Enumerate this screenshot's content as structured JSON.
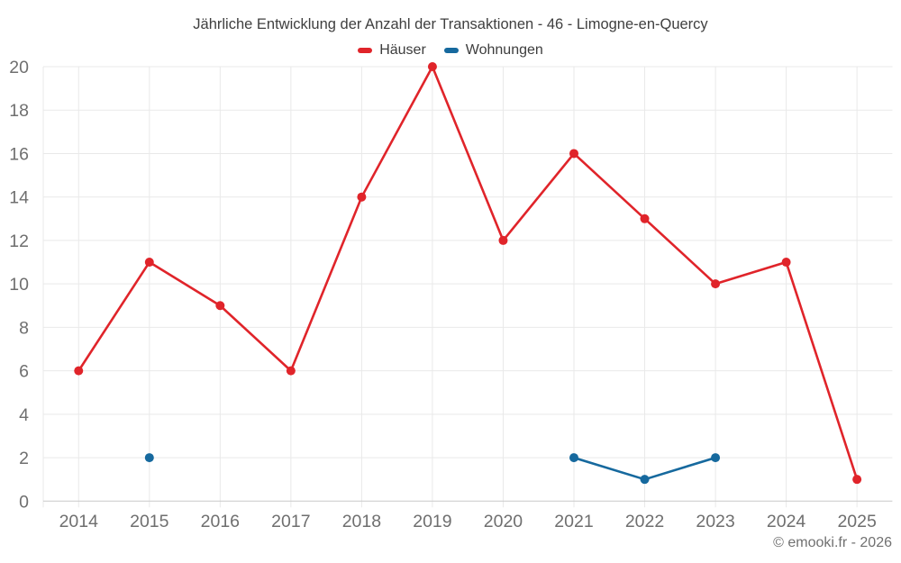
{
  "chart": {
    "title": "Jährliche Entwicklung der Anzahl der Transaktionen - 46 - Limogne-en-Quercy",
    "footer": "© emooki.fr - 2026"
  },
  "chart_data": {
    "type": "line",
    "title": "Jährliche Entwicklung der Anzahl der Transaktionen - 46 - Limogne-en-Quercy",
    "categories": [
      "2014",
      "2015",
      "2016",
      "2017",
      "2018",
      "2019",
      "2020",
      "2021",
      "2022",
      "2023",
      "2024",
      "2025"
    ],
    "series": [
      {
        "name": "Häuser",
        "color": "#e0242a",
        "values": [
          6,
          11,
          9,
          6,
          14,
          20,
          12,
          16,
          13,
          10,
          11,
          1
        ]
      },
      {
        "name": "Wohnungen",
        "color": "#16699e",
        "values": [
          null,
          2,
          null,
          null,
          null,
          null,
          null,
          2,
          1,
          2,
          null,
          null
        ]
      }
    ],
    "xlabel": "",
    "ylabel": "",
    "ylim": [
      0,
      20
    ],
    "yticks": [
      0,
      2,
      4,
      6,
      8,
      10,
      12,
      14,
      16,
      18,
      20
    ],
    "grid": true,
    "legend_position": "top",
    "colors": {
      "grid": "#e9e9e9",
      "axis": "#c9c9c9",
      "tick_label": "#6f6f6f",
      "title": "#3f3f3f",
      "footer": "#707070"
    }
  }
}
